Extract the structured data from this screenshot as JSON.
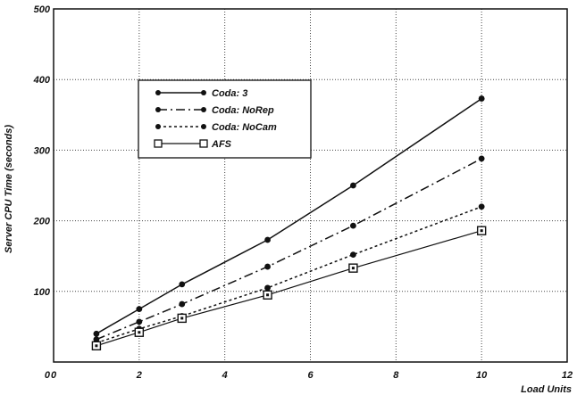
{
  "chart_data": {
    "type": "line",
    "title": "",
    "xlabel": "Load Units",
    "ylabel": "Server CPU Time (seconds)",
    "xlim": [
      0,
      12
    ],
    "ylim": [
      0,
      500
    ],
    "xticks": [
      0,
      2,
      4,
      6,
      8,
      10,
      12
    ],
    "yticks": [
      100,
      200,
      300,
      400,
      500
    ],
    "ytick_zero_label": "0",
    "grid": true,
    "legend_position": "upper-left (inside plot)",
    "x": [
      1,
      2,
      3,
      5,
      7,
      10
    ],
    "series": [
      {
        "name": "Coda: 3",
        "style": "solid",
        "marker": "dot",
        "color": "#111111",
        "values": [
          40,
          75,
          110,
          173,
          250,
          373
        ]
      },
      {
        "name": "Coda: NoRep",
        "style": "dashdot",
        "marker": "dot",
        "color": "#111111",
        "values": [
          32,
          57,
          82,
          135,
          193,
          288
        ]
      },
      {
        "name": "Coda: NoCam",
        "style": "dotted",
        "marker": "dot",
        "color": "#111111",
        "values": [
          27,
          47,
          65,
          105,
          152,
          220
        ]
      },
      {
        "name": "AFS",
        "style": "solid-thin",
        "marker": "square",
        "color": "#111111",
        "values": [
          23,
          42,
          62,
          95,
          133,
          186
        ]
      }
    ]
  }
}
